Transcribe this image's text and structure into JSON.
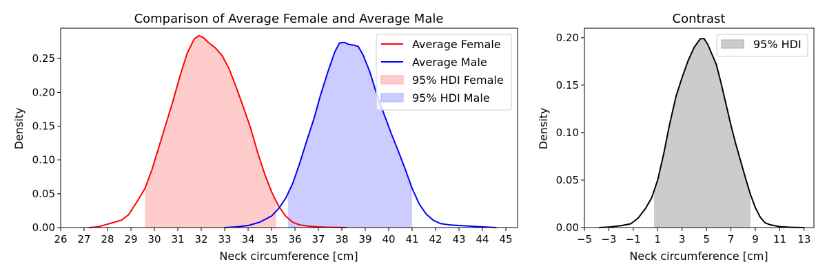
{
  "chart_data": [
    {
      "type": "area",
      "title": "Comparison of Average Female and Average Male",
      "xlabel": "Neck circumference [cm]",
      "ylabel": "Density",
      "xlim": [
        26,
        45.5
      ],
      "ylim": [
        0,
        0.295
      ],
      "xticks": [
        "26",
        "27",
        "28",
        "29",
        "30",
        "31",
        "32",
        "33",
        "34",
        "35",
        "36",
        "37",
        "38",
        "39",
        "40",
        "41",
        "42",
        "43",
        "44",
        "45"
      ],
      "yticks": [
        "0.00",
        "0.05",
        "0.10",
        "0.15",
        "0.20",
        "0.25"
      ],
      "legend_position": "upper right",
      "grid": false,
      "series": [
        {
          "name": "Average Female",
          "color": "#ff0000",
          "x": [
            27.2,
            27.6,
            28.0,
            28.3,
            28.6,
            28.9,
            29.2,
            29.6,
            29.9,
            30.2,
            30.5,
            30.8,
            31.1,
            31.4,
            31.7,
            31.9,
            32.1,
            32.3,
            32.6,
            32.9,
            33.2,
            33.5,
            33.8,
            34.1,
            34.4,
            34.7,
            35.0,
            35.3,
            35.6,
            35.9,
            36.2,
            36.6,
            37.0,
            37.4,
            38.2
          ],
          "y": [
            0.0,
            0.001,
            0.005,
            0.008,
            0.011,
            0.019,
            0.035,
            0.058,
            0.086,
            0.12,
            0.154,
            0.188,
            0.225,
            0.258,
            0.279,
            0.284,
            0.281,
            0.274,
            0.266,
            0.254,
            0.234,
            0.207,
            0.178,
            0.148,
            0.112,
            0.08,
            0.053,
            0.032,
            0.017,
            0.008,
            0.004,
            0.002,
            0.001,
            0.0005,
            0.0
          ]
        },
        {
          "name": "Average Male",
          "color": "#0000ff",
          "x": [
            33.0,
            33.5,
            34.0,
            34.5,
            35.0,
            35.3,
            35.6,
            35.9,
            36.2,
            36.5,
            36.8,
            37.1,
            37.4,
            37.7,
            37.9,
            38.1,
            38.3,
            38.5,
            38.7,
            38.9,
            39.2,
            39.5,
            39.8,
            40.1,
            40.4,
            40.7,
            41.0,
            41.3,
            41.6,
            41.9,
            42.2,
            42.6,
            43.0,
            43.5,
            44.0,
            44.6
          ],
          "y": [
            0.0,
            0.001,
            0.003,
            0.008,
            0.017,
            0.028,
            0.043,
            0.065,
            0.095,
            0.128,
            0.16,
            0.197,
            0.23,
            0.26,
            0.273,
            0.274,
            0.271,
            0.27,
            0.268,
            0.256,
            0.23,
            0.196,
            0.168,
            0.14,
            0.114,
            0.087,
            0.058,
            0.035,
            0.02,
            0.011,
            0.006,
            0.004,
            0.003,
            0.002,
            0.001,
            0.0
          ]
        }
      ],
      "hdi": [
        {
          "name": "95% HDI Female",
          "color": "#ffcccc",
          "range": [
            29.6,
            35.2
          ]
        },
        {
          "name": "95% HDI Male",
          "color": "#ccccff",
          "range": [
            35.7,
            41.0
          ]
        }
      ]
    },
    {
      "type": "area",
      "title": "Contrast",
      "xlabel": "Neck circumference [cm]",
      "ylabel": "Density",
      "xlim": [
        -5,
        13.8
      ],
      "ylim": [
        0,
        0.21
      ],
      "xticks": [
        "−5",
        "−3",
        "−1",
        "1",
        "3",
        "5",
        "7",
        "9",
        "11",
        "13"
      ],
      "yticks": [
        "0.00",
        "0.05",
        "0.10",
        "0.15",
        "0.20"
      ],
      "legend_position": "upper right",
      "grid": false,
      "series": [
        {
          "name": "",
          "color": "#000000",
          "x": [
            -3.8,
            -3.0,
            -2.0,
            -1.2,
            -0.6,
            0.0,
            0.5,
            1.0,
            1.5,
            2.0,
            2.5,
            3.0,
            3.5,
            4.0,
            4.5,
            4.8,
            5.1,
            5.4,
            5.8,
            6.2,
            6.6,
            7.0,
            7.4,
            7.8,
            8.2,
            8.6,
            9.0,
            9.4,
            9.8,
            10.2,
            10.6,
            11.0,
            11.6,
            12.2,
            13.0
          ],
          "y": [
            0.0,
            0.0005,
            0.002,
            0.004,
            0.01,
            0.02,
            0.031,
            0.05,
            0.078,
            0.11,
            0.138,
            0.158,
            0.176,
            0.19,
            0.199,
            0.199,
            0.193,
            0.184,
            0.172,
            0.152,
            0.13,
            0.108,
            0.088,
            0.07,
            0.052,
            0.035,
            0.021,
            0.011,
            0.005,
            0.003,
            0.002,
            0.001,
            0.0005,
            0.0002,
            0.0
          ]
        }
      ],
      "hdi": [
        {
          "name": "95% HDI",
          "color": "#cccccc",
          "range": [
            0.7,
            8.6
          ]
        }
      ]
    }
  ]
}
